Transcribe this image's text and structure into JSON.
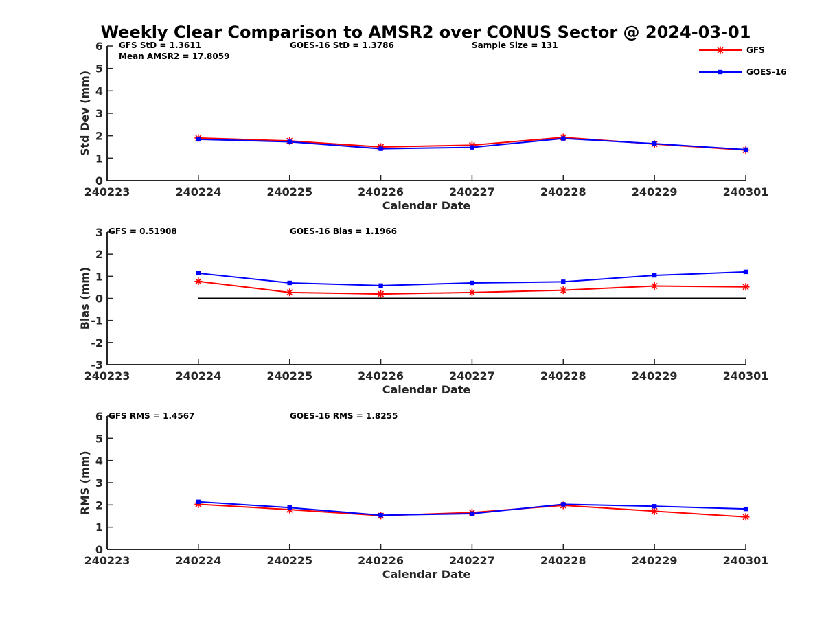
{
  "title": "Weekly Clear Comparison to AMSR2 over CONUS Sector @ 2024-03-01",
  "colors": {
    "GFS": "#ff0000",
    "GOES-16": "#0000ff",
    "zero_line": "#000000",
    "axis": "#262626"
  },
  "legend": {
    "position": "top-right",
    "entries": [
      "GFS",
      "GOES-16"
    ]
  },
  "chart_data": [
    {
      "type": "line",
      "xlabel": "Calendar Date",
      "ylabel": "Std Dev (mm)",
      "categories": [
        "240223",
        "240224",
        "240225",
        "240226",
        "240227",
        "240228",
        "240229",
        "240301"
      ],
      "yticks": [
        "0",
        "1",
        "2",
        "3",
        "4",
        "5",
        "6"
      ],
      "ylim": [
        0,
        6
      ],
      "series": [
        {
          "name": "GFS",
          "marker": "star",
          "values": [
            null,
            1.9,
            1.77,
            1.5,
            1.58,
            1.93,
            1.63,
            1.36
          ]
        },
        {
          "name": "GOES-16",
          "marker": "square",
          "values": [
            null,
            1.84,
            1.73,
            1.42,
            1.48,
            1.88,
            1.65,
            1.38
          ]
        }
      ],
      "stats": [
        "GFS StD = 1.3611",
        "GOES-16 StD = 1.3786",
        "Sample Size = 131",
        "Mean AMSR2 = 17.8059"
      ]
    },
    {
      "type": "line",
      "xlabel": "Calendar Date",
      "ylabel": "Bias (mm)",
      "categories": [
        "240223",
        "240224",
        "240225",
        "240226",
        "240227",
        "240228",
        "240229",
        "240301"
      ],
      "yticks": [
        "-3",
        "-2",
        "-1",
        "0",
        "1",
        "2",
        "3"
      ],
      "ylim": [
        -3,
        3
      ],
      "zero_line": true,
      "series": [
        {
          "name": "GFS",
          "marker": "star",
          "values": [
            null,
            0.77,
            0.27,
            0.2,
            0.27,
            0.37,
            0.56,
            0.52
          ]
        },
        {
          "name": "GOES-16",
          "marker": "square",
          "values": [
            null,
            1.14,
            0.7,
            0.58,
            0.7,
            0.75,
            1.04,
            1.2
          ]
        }
      ],
      "stats": [
        "GFS = 0.51908",
        "GOES-16 Bias  = 1.1966"
      ]
    },
    {
      "type": "line",
      "xlabel": "Calendar Date",
      "ylabel": "RMS (mm)",
      "categories": [
        "240223",
        "240224",
        "240225",
        "240226",
        "240227",
        "240228",
        "240229",
        "240301"
      ],
      "yticks": [
        "0",
        "1",
        "2",
        "3",
        "4",
        "5",
        "6"
      ],
      "ylim": [
        0,
        6
      ],
      "series": [
        {
          "name": "GFS",
          "marker": "star",
          "values": [
            null,
            2.03,
            1.79,
            1.52,
            1.66,
            1.98,
            1.72,
            1.46
          ]
        },
        {
          "name": "GOES-16",
          "marker": "square",
          "values": [
            null,
            2.14,
            1.88,
            1.54,
            1.61,
            2.03,
            1.94,
            1.82
          ]
        }
      ],
      "stats": [
        "GFS RMS = 1.4567",
        "GOES-16 RMS = 1.8255"
      ]
    }
  ]
}
